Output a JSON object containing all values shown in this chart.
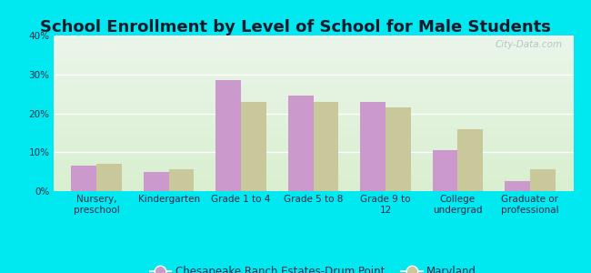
{
  "title": "School Enrollment by Level of School for Male Students",
  "categories": [
    "Nursery,\npreschool",
    "Kindergarten",
    "Grade 1 to 4",
    "Grade 5 to 8",
    "Grade 9 to\n12",
    "College\nundergrad",
    "Graduate or\nprofessional"
  ],
  "series1_label": "Chesapeake Ranch Estates-Drum Point",
  "series2_label": "Maryland",
  "series1_values": [
    6.5,
    5.0,
    28.5,
    24.5,
    23.0,
    10.5,
    2.5
  ],
  "series2_values": [
    7.0,
    5.5,
    23.0,
    23.0,
    21.5,
    16.0,
    5.5
  ],
  "series1_color": "#cc99cc",
  "series2_color": "#c8c89a",
  "bg_outer": "#00e8f0",
  "bg_plot_top": "#eaf5ea",
  "bg_plot_bottom": "#d8efce",
  "ylim": [
    0,
    40
  ],
  "yticks": [
    0,
    10,
    20,
    30,
    40
  ],
  "ytick_labels": [
    "0%",
    "10%",
    "20%",
    "30%",
    "40%"
  ],
  "bar_width": 0.35,
  "title_fontsize": 13,
  "tick_fontsize": 7.5,
  "legend_fontsize": 8.5,
  "title_color": "#1a1a2e",
  "tick_color": "#2a2a4a",
  "watermark": "City-Data.com"
}
